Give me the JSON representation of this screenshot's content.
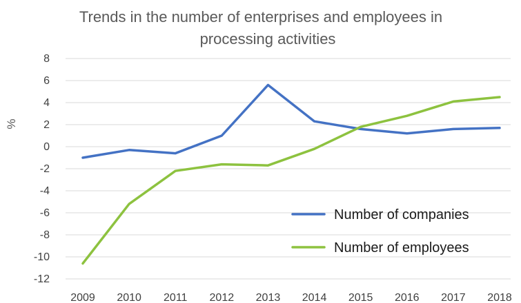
{
  "chart_data": {
    "type": "line",
    "title": "Trends in the number of enterprises and employees in processing activities",
    "title_lines": [
      "Trends in the number of enterprises and employees in",
      "processing activities"
    ],
    "ylabel": "%",
    "xlabel": "",
    "x": [
      "2009",
      "2010",
      "2011",
      "2012",
      "2013",
      "2014",
      "2015",
      "2016",
      "2017",
      "2018"
    ],
    "ylim": [
      -12,
      8
    ],
    "yticks": [
      "8",
      "6",
      "4",
      "2",
      "0",
      "-2",
      "-4",
      "-6",
      "-8",
      "-10",
      "-12"
    ],
    "grid": true,
    "legend_position": "bottom-right",
    "series": [
      {
        "name": "Number of companies",
        "color": "#4472C4",
        "values": [
          -1.0,
          -0.3,
          -0.6,
          1.0,
          5.6,
          2.3,
          1.6,
          1.2,
          1.6,
          1.7
        ]
      },
      {
        "name": "Number of employees",
        "color": "#8DC23F",
        "values": [
          -10.6,
          -5.2,
          -2.2,
          -1.6,
          -1.7,
          -0.2,
          1.8,
          2.8,
          4.1,
          4.5
        ]
      }
    ]
  }
}
